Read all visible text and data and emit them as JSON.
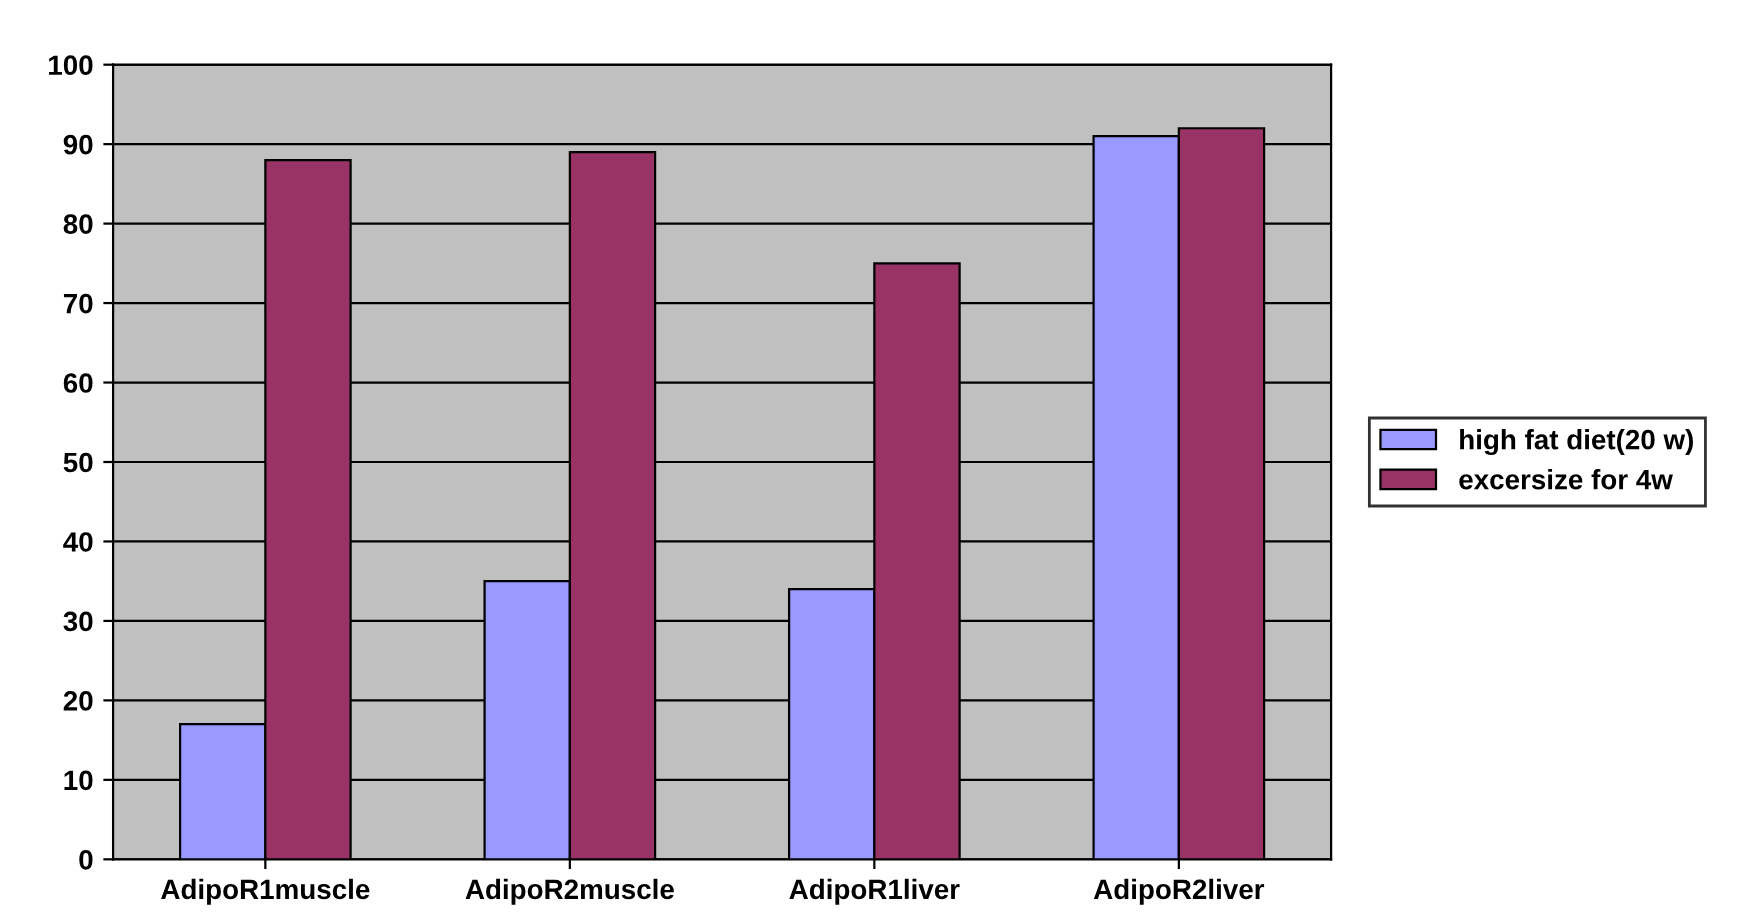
{
  "chart_data": {
    "type": "bar",
    "categories": [
      "AdipoR1muscle",
      "AdipoR2muscle",
      "AdipoR1liver",
      "AdipoR2liver"
    ],
    "series": [
      {
        "name": "high fat diet(20 w)",
        "color": "#9999ff",
        "values": [
          17,
          35,
          34,
          91
        ]
      },
      {
        "name": "excersize for 4w",
        "color": "#993366",
        "values": [
          88,
          89,
          75,
          92
        ]
      }
    ],
    "ylim": [
      0,
      100
    ],
    "yticks": [
      0,
      10,
      20,
      30,
      40,
      50,
      60,
      70,
      80,
      90,
      100
    ],
    "grid": "y",
    "legend": "right"
  }
}
